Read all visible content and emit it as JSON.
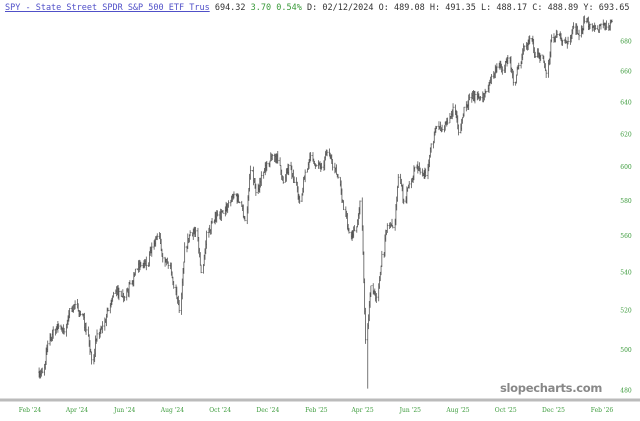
{
  "header": {
    "symbol_link": "SPY - State Street SPDR S&P 500 ETF Trus",
    "last": "694.32",
    "change": "3.70",
    "change_pct": "0.54%",
    "date": "D: 02/12/2024",
    "open": "O: 489.08",
    "high": "H: 491.35",
    "low": "L: 488.17",
    "close": "C: 488.89",
    "y": "Y: 693.65"
  },
  "watermark": "slopecharts.com",
  "colors": {
    "bars": "#555555",
    "ticks": "#3a9a3a",
    "link": "#5050c8",
    "axis": "#bbbbbb"
  },
  "chart_data": {
    "type": "ohlc",
    "yscale": "log",
    "ylim": [
      480,
      695
    ],
    "yticks": [
      480,
      500,
      520,
      540,
      560,
      580,
      600,
      620,
      640,
      660,
      680
    ],
    "xlim": [
      "2024-02-01",
      "2026-02-20"
    ],
    "xticks": [
      {
        "d": "2024-02-01",
        "label": "Feb '24"
      },
      {
        "d": "2024-04-01",
        "label": "Apr '24"
      },
      {
        "d": "2024-06-01",
        "label": "Jun '24"
      },
      {
        "d": "2024-08-01",
        "label": "Aug '24"
      },
      {
        "d": "2024-10-01",
        "label": "Oct '24"
      },
      {
        "d": "2024-12-01",
        "label": "Dec '24"
      },
      {
        "d": "2025-02-01",
        "label": "Feb '25"
      },
      {
        "d": "2025-04-01",
        "label": "Apr '25"
      },
      {
        "d": "2025-06-01",
        "label": "Jun '25"
      },
      {
        "d": "2025-08-01",
        "label": "Aug '25"
      },
      {
        "d": "2025-10-01",
        "label": "Oct '25"
      },
      {
        "d": "2025-12-01",
        "label": "Dec '25"
      },
      {
        "d": "2026-02-01",
        "label": "Feb '26"
      }
    ],
    "grid": false,
    "weekly_close": [
      [
        "2024-02-12",
        489
      ],
      [
        "2024-02-19",
        503
      ],
      [
        "2024-02-26",
        510
      ],
      [
        "2024-03-04",
        512
      ],
      [
        "2024-03-11",
        509
      ],
      [
        "2024-03-18",
        521
      ],
      [
        "2024-03-25",
        523
      ],
      [
        "2024-04-01",
        518
      ],
      [
        "2024-04-08",
        510
      ],
      [
        "2024-04-15",
        495
      ],
      [
        "2024-04-22",
        508
      ],
      [
        "2024-04-29",
        512
      ],
      [
        "2024-05-06",
        520
      ],
      [
        "2024-05-13",
        529
      ],
      [
        "2024-05-20",
        530
      ],
      [
        "2024-05-27",
        527
      ],
      [
        "2024-06-03",
        534
      ],
      [
        "2024-06-10",
        542
      ],
      [
        "2024-06-17",
        544
      ],
      [
        "2024-06-24",
        544
      ],
      [
        "2024-07-01",
        554
      ],
      [
        "2024-07-08",
        560
      ],
      [
        "2024-07-15",
        548
      ],
      [
        "2024-07-22",
        544
      ],
      [
        "2024-07-29",
        532
      ],
      [
        "2024-08-05",
        520
      ],
      [
        "2024-08-12",
        554
      ],
      [
        "2024-08-19",
        562
      ],
      [
        "2024-08-26",
        563
      ],
      [
        "2024-09-02",
        540
      ],
      [
        "2024-09-09",
        562
      ],
      [
        "2024-09-16",
        568
      ],
      [
        "2024-09-23",
        572
      ],
      [
        "2024-09-30",
        573
      ],
      [
        "2024-10-07",
        579
      ],
      [
        "2024-10-14",
        584
      ],
      [
        "2024-10-21",
        579
      ],
      [
        "2024-10-28",
        569
      ],
      [
        "2024-11-04",
        598
      ],
      [
        "2024-11-11",
        585
      ],
      [
        "2024-11-18",
        595
      ],
      [
        "2024-11-25",
        602
      ],
      [
        "2024-12-02",
        607
      ],
      [
        "2024-12-09",
        604
      ],
      [
        "2024-12-16",
        591
      ],
      [
        "2024-12-23",
        601
      ],
      [
        "2024-12-30",
        591
      ],
      [
        "2025-01-06",
        580
      ],
      [
        "2025-01-13",
        597
      ],
      [
        "2025-01-20",
        607
      ],
      [
        "2025-01-27",
        601
      ],
      [
        "2025-02-03",
        600
      ],
      [
        "2025-02-10",
        609
      ],
      [
        "2025-02-17",
        600
      ],
      [
        "2025-02-24",
        594
      ],
      [
        "2025-03-03",
        575
      ],
      [
        "2025-03-10",
        562
      ],
      [
        "2025-03-17",
        563
      ],
      [
        "2025-03-24",
        580
      ],
      [
        "2025-03-31",
        505
      ],
      [
        "2025-04-07",
        533
      ],
      [
        "2025-04-14",
        527
      ],
      [
        "2025-04-21",
        550
      ],
      [
        "2025-04-28",
        566
      ],
      [
        "2025-05-05",
        565
      ],
      [
        "2025-05-12",
        594
      ],
      [
        "2025-05-19",
        580
      ],
      [
        "2025-05-26",
        590
      ],
      [
        "2025-06-02",
        600
      ],
      [
        "2025-06-09",
        597
      ],
      [
        "2025-06-16",
        595
      ],
      [
        "2025-06-23",
        614
      ],
      [
        "2025-06-30",
        625
      ],
      [
        "2025-07-07",
        623
      ],
      [
        "2025-07-14",
        627
      ],
      [
        "2025-07-21",
        637
      ],
      [
        "2025-07-28",
        621
      ],
      [
        "2025-08-04",
        637
      ],
      [
        "2025-08-11",
        643
      ],
      [
        "2025-08-18",
        645
      ],
      [
        "2025-08-25",
        643
      ],
      [
        "2025-09-01",
        647
      ],
      [
        "2025-09-08",
        657
      ],
      [
        "2025-09-15",
        663
      ],
      [
        "2025-09-22",
        661
      ],
      [
        "2025-09-29",
        669
      ],
      [
        "2025-10-06",
        653
      ],
      [
        "2025-10-13",
        664
      ],
      [
        "2025-10-20",
        677
      ],
      [
        "2025-10-27",
        682
      ],
      [
        "2025-11-03",
        670
      ],
      [
        "2025-11-10",
        671
      ],
      [
        "2025-11-17",
        659
      ],
      [
        "2025-11-24",
        683
      ],
      [
        "2025-12-01",
        685
      ],
      [
        "2025-12-08",
        681
      ],
      [
        "2025-12-15",
        680
      ],
      [
        "2025-12-22",
        690
      ],
      [
        "2025-12-29",
        684
      ],
      [
        "2026-01-05",
        694
      ],
      [
        "2026-01-12",
        692
      ],
      [
        "2026-01-19",
        689
      ],
      [
        "2026-01-26",
        692
      ],
      [
        "2026-02-02",
        690
      ],
      [
        "2026-02-09",
        694
      ]
    ],
    "notable_low": {
      "d": "2025-04-07",
      "value": 481
    }
  }
}
